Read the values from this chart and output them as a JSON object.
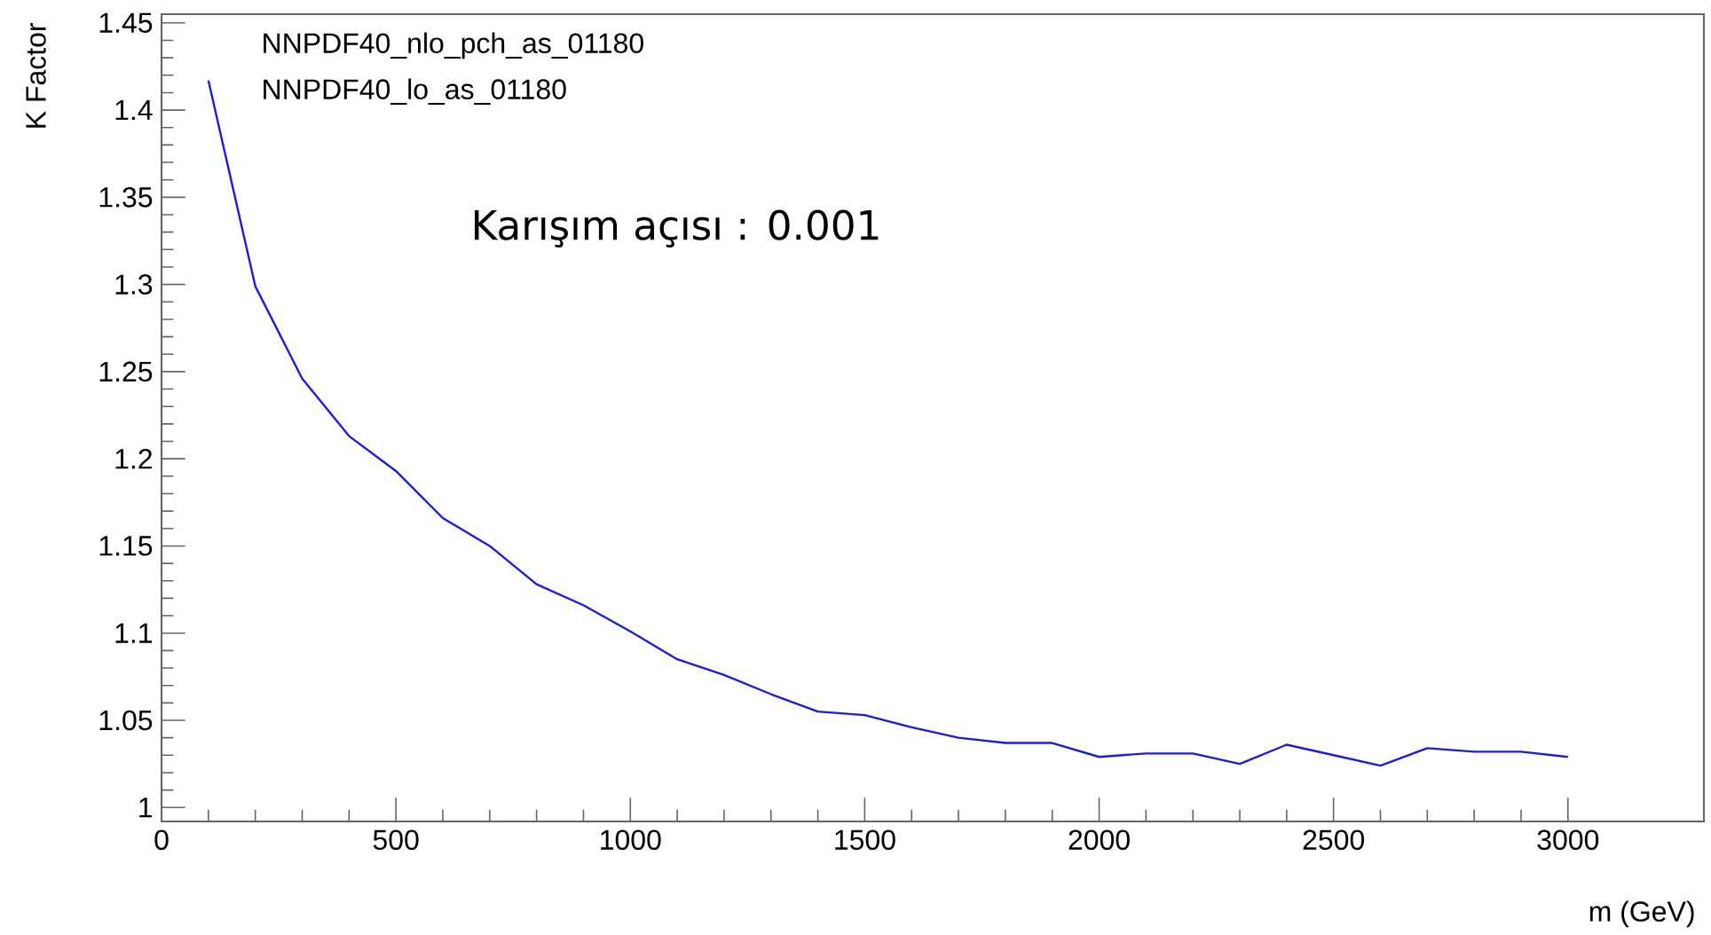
{
  "chart_data": {
    "type": "line",
    "xlabel": "m (GeV)",
    "ylabel": "K Factor",
    "annotations": [
      "NNPDF40_nlo_pch_as_01180",
      "NNPDF40_lo_as_01180",
      "Karışım açısı : 0.001"
    ],
    "x": [
      100,
      200,
      300,
      400,
      500,
      600,
      700,
      800,
      900,
      1000,
      1100,
      1200,
      1300,
      1400,
      1500,
      1600,
      1700,
      1800,
      1900,
      2000,
      2100,
      2200,
      2300,
      2400,
      2500,
      2600,
      2700,
      2800,
      2900,
      3000
    ],
    "series": [
      {
        "color": "#1c1ce0",
        "values": [
          1.417,
          1.299,
          1.246,
          1.213,
          1.193,
          1.166,
          1.15,
          1.128,
          1.116,
          1.101,
          1.085,
          1.076,
          1.065,
          1.055,
          1.053,
          1.046,
          1.04,
          1.037,
          1.037,
          1.029,
          1.031,
          1.031,
          1.025,
          1.036,
          1.03,
          1.024,
          1.034,
          1.032,
          1.032,
          1.029
        ]
      }
    ],
    "xlim": [
      0,
      3290
    ],
    "ylim": [
      0.992,
      1.455
    ],
    "xticks": [
      0,
      500,
      1000,
      1500,
      2000,
      2500,
      3000
    ],
    "yticks": [
      1,
      1.05,
      1.1,
      1.15,
      1.2,
      1.25,
      1.3,
      1.35,
      1.4,
      1.45
    ],
    "marker": "none",
    "line_style": "solid"
  }
}
